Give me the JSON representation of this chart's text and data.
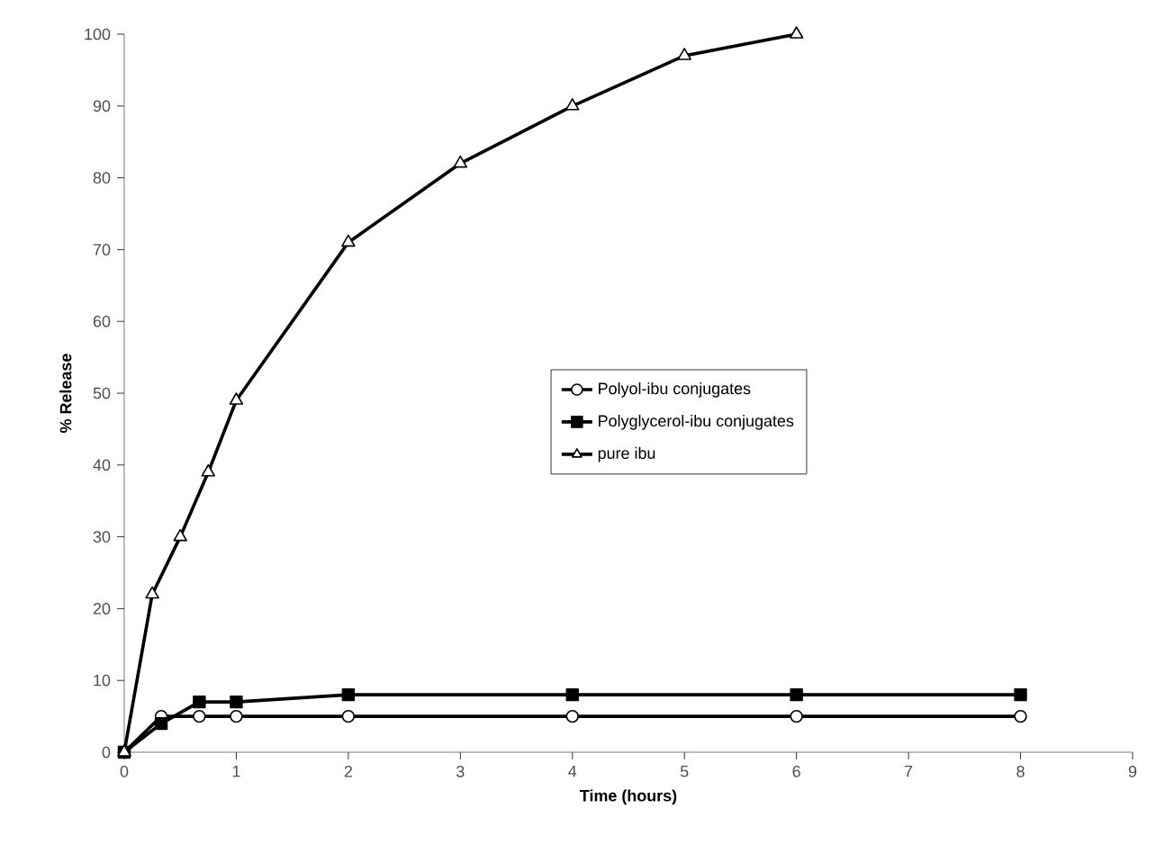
{
  "chart_data": {
    "type": "line",
    "xlabel": "Time (hours)",
    "ylabel": "% Release",
    "xlim": [
      0,
      9
    ],
    "ylim": [
      0,
      100
    ],
    "xticks": [
      0,
      1,
      2,
      3,
      4,
      5,
      6,
      7,
      8,
      9
    ],
    "yticks": [
      0,
      10,
      20,
      30,
      40,
      50,
      60,
      70,
      80,
      90,
      100
    ],
    "legend": "center",
    "grid": false,
    "series": [
      {
        "name": "Polyol-ibu conjugates",
        "color": "#000000",
        "marker": "circle",
        "x": [
          0,
          0.33,
          0.67,
          1,
          2,
          4,
          6,
          8
        ],
        "values": [
          0,
          5,
          5,
          5,
          5,
          5,
          5,
          5
        ]
      },
      {
        "name": "Polyglycerol-ibu conjugates",
        "color": "#000000",
        "marker": "square",
        "x": [
          0,
          0.33,
          0.67,
          1,
          2,
          4,
          6,
          8
        ],
        "values": [
          0,
          4,
          7,
          7,
          8,
          8,
          8,
          8
        ]
      },
      {
        "name": "pure ibu",
        "color": "#000000",
        "marker": "triangle",
        "x": [
          0,
          0.25,
          0.5,
          0.75,
          1,
          2,
          3,
          4,
          5,
          6
        ],
        "values": [
          0,
          22,
          30,
          39,
          49,
          71,
          82,
          90,
          97,
          100
        ]
      }
    ]
  }
}
